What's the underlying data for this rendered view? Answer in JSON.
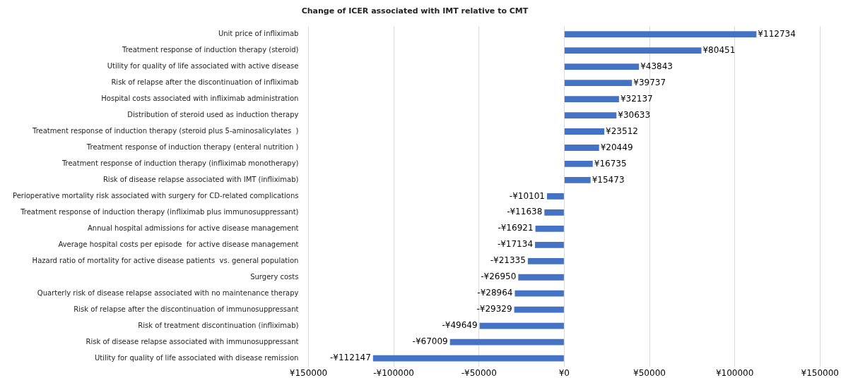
{
  "chart_data": {
    "type": "bar",
    "orientation": "horizontal",
    "title": "Change of ICER associated with IMT relative to CMT",
    "categories": [
      "Unit price of infliximab",
      "Treatment response of induction therapy (steroid)",
      "Utility for quality of life associated with active disease",
      "Risk of relapse after the discontinuation of infliximab",
      "Hospital costs associated with infliximab administration",
      "Distribution of steroid used as induction therapy",
      "Treatment response of induction therapy (steroid plus 5-aminosalicylates  )",
      "Treatment response of induction therapy (enteral nutrition )",
      "Treatment response of induction therapy (infliximab monotherapy)",
      "Risk of disease relapse associated with IMT (infliximab)",
      "Perioperative mortality risk associated with surgery for CD-related complications",
      "Treatment response of induction therapy (infliximab plus immunosuppressant)",
      "Annual hospital admissions for active disease management",
      "Average hospital costs per episode  for active disease management",
      "Hazard ratio of mortality for active disease patients  vs. general population",
      "Surgery costs",
      "Quarterly risk of disease relapse associated with no maintenance therapy",
      "Risk of relapse after the discontinuation of immunosuppressant",
      "Risk of treatment discontinuation (infliximab)",
      "Risk of disease relapse associated with immunosuppressant",
      "Utility for quality of life associated with disease remission"
    ],
    "values": [
      112734,
      80451,
      43843,
      39737,
      32137,
      30633,
      23512,
      20449,
      16735,
      15473,
      -10101,
      -11638,
      -16921,
      -17134,
      -21335,
      -26950,
      -28964,
      -29329,
      -49649,
      -67009,
      -112147
    ],
    "value_labels": [
      "¥112734",
      "¥80451",
      "¥43843",
      "¥39737",
      "¥32137",
      "¥30633",
      "¥23512",
      "¥20449",
      "¥16735",
      "¥15473",
      "-¥10101",
      "-¥11638",
      "-¥16921",
      "-¥17134",
      "-¥21335",
      "-¥26950",
      "-¥28964",
      "-¥29329",
      "-¥49649",
      "-¥67009",
      "-¥112147"
    ],
    "color": "#4472c4",
    "xlim": [
      -150000,
      150000
    ],
    "xticks": [
      {
        "value": -150000,
        "label": "¥150000"
      },
      {
        "value": -100000,
        "label": "-¥100000"
      },
      {
        "value": -50000,
        "label": "-¥50000"
      },
      {
        "value": 0,
        "label": "¥0"
      },
      {
        "value": 50000,
        "label": "¥50000"
      },
      {
        "value": 100000,
        "label": "¥100000"
      },
      {
        "value": 150000,
        "label": "¥150000"
      }
    ],
    "grid": "x",
    "legend": false
  }
}
